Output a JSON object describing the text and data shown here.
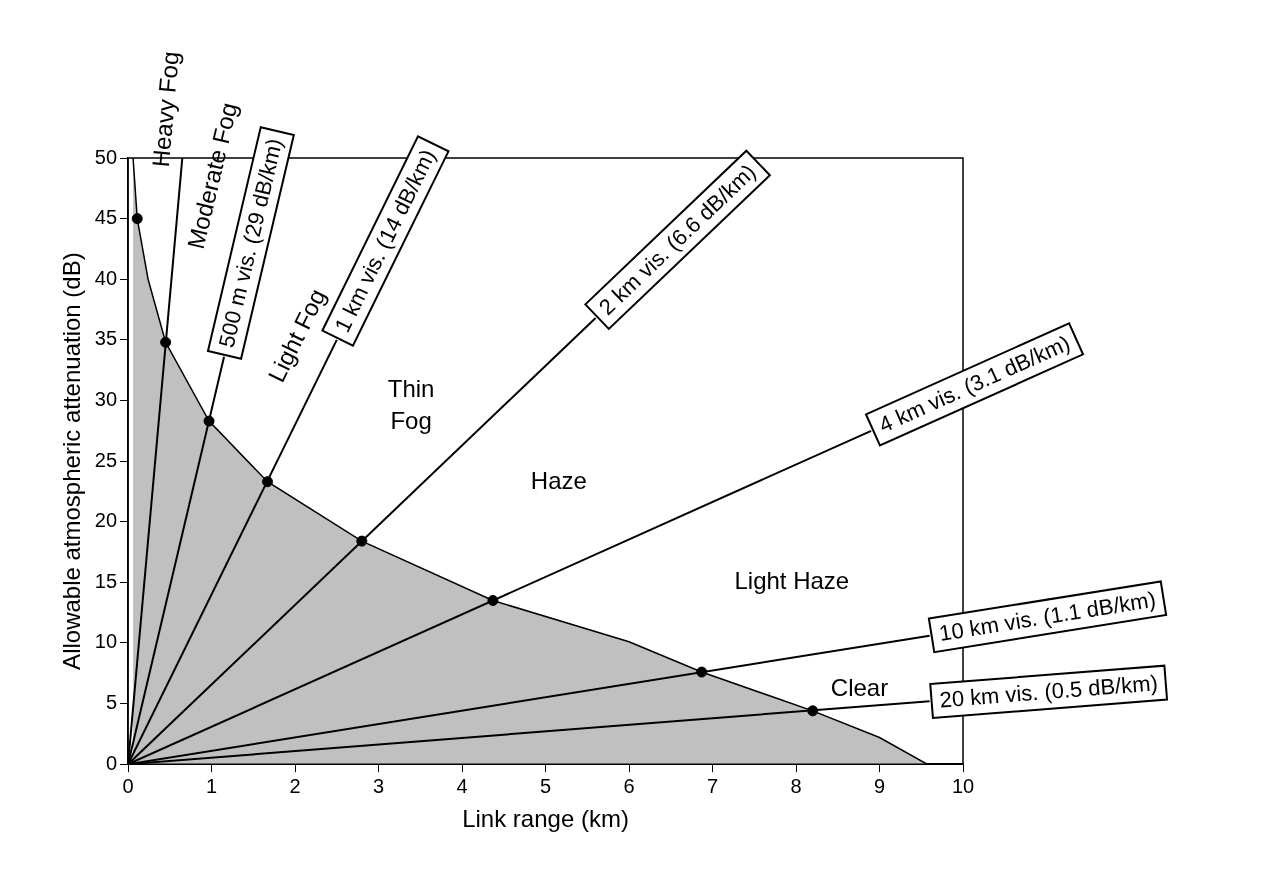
{
  "chart_data": {
    "type": "line",
    "xlabel": "Link range (km)",
    "ylabel": "Allowable atmospheric attenuation (dB)",
    "xlim": [
      0,
      10
    ],
    "xticks": [
      0,
      1,
      2,
      3,
      4,
      5,
      6,
      7,
      8,
      9,
      10
    ],
    "ylim": [
      0,
      50
    ],
    "yticks": [
      0,
      5,
      10,
      15,
      20,
      25,
      30,
      35,
      40,
      45,
      50
    ],
    "grid": false,
    "legend": false,
    "marker": "none",
    "series": [
      {
        "type": "area",
        "color": "#c0c0c0",
        "x": [
          0.06,
          0.11,
          0.24,
          0.45,
          0.97,
          1.67,
          2.8,
          4.37,
          6,
          6.87,
          8.2,
          9,
          9.57
        ],
        "values": [
          50,
          45,
          40,
          34.8,
          28.3,
          23.3,
          18.4,
          13.5,
          10.1,
          7.6,
          4.4,
          2.2,
          0
        ]
      },
      {
        "type": "line",
        "color": "#000000",
        "x": [
          0,
          0.65
        ],
        "values": [
          0,
          50
        ]
      },
      {
        "type": "line",
        "name": "500 m vis. (29 dB/km)",
        "color": "#000000",
        "x": [
          0,
          1.15
        ],
        "values": [
          0,
          33.6
        ]
      },
      {
        "type": "line",
        "name": "1 km vis. (14 dB/km)",
        "color": "#000000",
        "x": [
          0,
          2.5
        ],
        "values": [
          0,
          35
        ]
      },
      {
        "type": "line",
        "name": "2 km vis. (6.6 dB/km)",
        "color": "#000000",
        "x": [
          0,
          5.6
        ],
        "values": [
          0,
          36.8
        ]
      },
      {
        "type": "line",
        "name": "4 km vis. (3.1 dB/km)",
        "color": "#000000",
        "x": [
          0,
          8.9
        ],
        "values": [
          0,
          27.5
        ]
      },
      {
        "type": "line",
        "name": "10 km vis. (1.1 dB/km)",
        "color": "#000000",
        "x": [
          0,
          9.6
        ],
        "values": [
          0,
          10.6
        ]
      },
      {
        "type": "line",
        "name": "20 km vis. (0.5 dB/km)",
        "color": "#000000",
        "x": [
          0,
          9.6
        ],
        "values": [
          0,
          5.2
        ]
      },
      {
        "type": "scatter",
        "color": "#000000",
        "marker": "circle",
        "x": [
          0.11,
          0.45,
          0.97,
          1.67,
          2.8,
          4.37,
          6.87,
          8.2
        ],
        "values": [
          45,
          34.8,
          28.3,
          23.3,
          18.4,
          13.5,
          7.6,
          4.4
        ]
      }
    ],
    "annotations": [
      "Heavy Fog",
      "Moderate Fog",
      "Light Fog",
      "Thin\nFog",
      "Haze",
      "Light Haze",
      "Clear"
    ]
  }
}
